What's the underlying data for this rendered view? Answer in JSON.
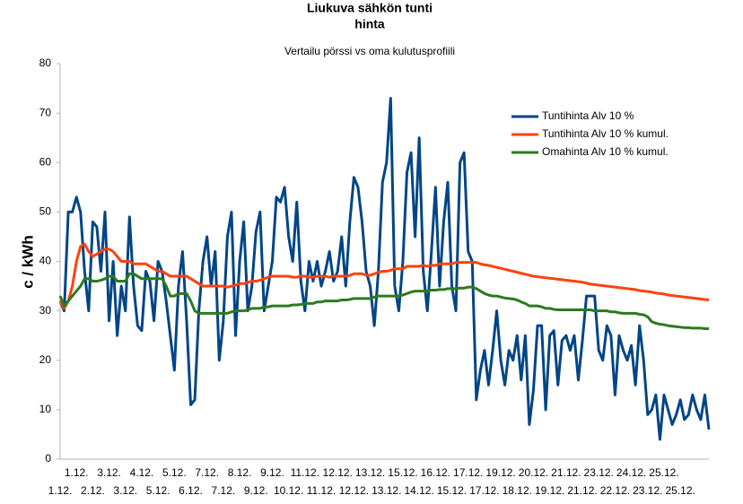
{
  "chart_data": {
    "type": "line",
    "title": [
      "Liukuva sähkön tunti",
      "hinta"
    ],
    "subtitle": "Vertailu pörssi vs oma kulutusprofiili",
    "y_label": "c / kWh",
    "ylim": [
      0,
      80
    ],
    "yticks": [
      0,
      10,
      20,
      30,
      40,
      50,
      60,
      70,
      80
    ],
    "grid": false,
    "legend": "upper right",
    "categories": [
      "1.12.",
      null,
      null,
      null,
      "1.12.",
      null,
      null,
      null,
      "2.12.",
      null,
      null,
      null,
      "3.12.",
      null,
      null,
      null,
      "3.12.",
      null,
      null,
      null,
      "4.12.",
      null,
      null,
      null,
      "5.12.",
      null,
      null,
      null,
      "5.12.",
      null,
      null,
      null,
      "6.12.",
      null,
      null,
      null,
      "7.12.",
      null,
      null,
      null,
      "7.12.",
      null,
      null,
      null,
      "8.12.",
      null,
      null,
      null,
      "9.12.",
      null,
      null,
      null,
      "9.12.",
      null,
      null,
      null,
      "10.12.",
      null,
      null,
      null,
      "11.12.",
      null,
      null,
      null,
      "11.12.",
      null,
      null,
      null,
      "12.12.",
      null,
      null,
      null,
      "12.12.",
      null,
      null,
      null,
      "13.12.",
      null,
      null,
      null,
      "13.12.",
      null,
      null,
      null,
      "15.12.",
      null,
      null,
      null,
      "14.12.",
      null,
      null,
      null,
      "16.12.",
      null,
      null,
      null,
      "15.12.",
      null,
      null,
      null,
      "17.12.",
      null,
      null,
      null,
      "17.12.",
      null,
      null,
      null,
      "19.12.",
      null,
      null,
      null,
      "18.12.",
      null,
      null,
      null,
      "20.12.",
      null,
      null,
      null,
      "19.12.",
      null,
      null,
      null,
      "21.12.",
      null,
      null,
      null,
      "21.12.",
      null,
      null,
      null,
      "23.12.",
      null,
      null,
      null,
      "22.12.",
      null,
      null,
      null,
      "24.12.",
      null,
      null,
      null,
      "23.12.",
      null,
      null,
      null,
      "25.12.",
      null,
      null,
      null,
      "25.12.",
      null,
      null,
      null,
      null,
      null,
      null,
      null
    ],
    "series": [
      {
        "name": "Tuntihinta Alv 10 %",
        "color": "#004586",
        "values": [
          32,
          30,
          50,
          50,
          53,
          50,
          38,
          30,
          48,
          47,
          38,
          50,
          28,
          40,
          25,
          35,
          30,
          49,
          35,
          27,
          26,
          38,
          36,
          28,
          40,
          38,
          32,
          25,
          18,
          35,
          42,
          28,
          11,
          12,
          30,
          40,
          45,
          35,
          42,
          20,
          28,
          45,
          50,
          25,
          40,
          48,
          30,
          35,
          46,
          50,
          30,
          35,
          40,
          53,
          52,
          55,
          45,
          40,
          52,
          36,
          30,
          40,
          36,
          40,
          35,
          38,
          42,
          36,
          38,
          45,
          35,
          48,
          57,
          55,
          48,
          38,
          35,
          27,
          38,
          56,
          60,
          73,
          35,
          30,
          40,
          58,
          62,
          45,
          65,
          38,
          30,
          42,
          55,
          35,
          48,
          56,
          35,
          30,
          60,
          62,
          42,
          40,
          12,
          18,
          22,
          15,
          22,
          30,
          20,
          15,
          22,
          20,
          25,
          16,
          25,
          7,
          14,
          27,
          27,
          10,
          25,
          26,
          15,
          24,
          25,
          22,
          25,
          16,
          24,
          33,
          33,
          33,
          22,
          20,
          27,
          25,
          13,
          25,
          22,
          20,
          23,
          15,
          27,
          20,
          9,
          10,
          13,
          4,
          13,
          10,
          7,
          9,
          12,
          8,
          9,
          13,
          10,
          8,
          13,
          6
        ]
      },
      {
        "name": "Tuntihinta Alv 10 % kumul.",
        "color": "#ff420e",
        "values": [
          32,
          30.5,
          32,
          35,
          40,
          43,
          43.5,
          42,
          41,
          41.5,
          42,
          42.5,
          42.5,
          42,
          41,
          40,
          40,
          40,
          39.5,
          39.5,
          39.5,
          39.5,
          39,
          38.5,
          38,
          38,
          37.5,
          37,
          37,
          37,
          37,
          37,
          36.5,
          36,
          35.5,
          35,
          35,
          35,
          35,
          35,
          35,
          34.8,
          35,
          35.2,
          35.5,
          35.5,
          35.8,
          36,
          36,
          36.2,
          36.5,
          36.8,
          37,
          37,
          37,
          37,
          37,
          36.8,
          36.8,
          37,
          37,
          36.8,
          36.8,
          37,
          37,
          37,
          36.8,
          37,
          37,
          37,
          37,
          37.2,
          37.5,
          37.5,
          37.5,
          37.2,
          37.2,
          37.5,
          37.8,
          38,
          38,
          38.2,
          38.5,
          38.5,
          38.5,
          39,
          39,
          39,
          39,
          39.2,
          39,
          39.2,
          39.2,
          39.5,
          39.5,
          39.5,
          39.5,
          39.8,
          39.8,
          39.8,
          39.8,
          39.8,
          39.8,
          39.5,
          39.3,
          39.2,
          39,
          38.8,
          38.6,
          38.4,
          38.2,
          38,
          37.8,
          37.6,
          37.4,
          37.2,
          37,
          36.9,
          36.8,
          36.7,
          36.6,
          36.5,
          36.4,
          36.3,
          36.2,
          36.1,
          36,
          35.9,
          35.8,
          35.6,
          35.4,
          35.3,
          35.2,
          35.1,
          35,
          34.9,
          34.8,
          34.7,
          34.6,
          34.5,
          34.4,
          34.3,
          34.1,
          34,
          33.9,
          33.8,
          33.6,
          33.5,
          33.4,
          33.2,
          33.1,
          33,
          32.9,
          32.8,
          32.7,
          32.6,
          32.5,
          32.4,
          32.3,
          32.2
        ]
      },
      {
        "name": "Omahinta Alv 10 % kumul.",
        "color": "#2c7a1e",
        "values": [
          33,
          31,
          32,
          33,
          34,
          35,
          36.5,
          36.5,
          36,
          36,
          36.2,
          36.5,
          37,
          37,
          36,
          36,
          36,
          37.5,
          37.5,
          37,
          36.5,
          36.5,
          36.5,
          36.5,
          36.5,
          36.5,
          35,
          33,
          33,
          33.5,
          33.5,
          33.5,
          32,
          30,
          29.5,
          29.5,
          29.5,
          29.5,
          29.5,
          29.5,
          29.5,
          29.5,
          29.8,
          30,
          30,
          30,
          30.2,
          30.5,
          30.5,
          30.5,
          30.8,
          30.8,
          31,
          31,
          31,
          31,
          31,
          31.2,
          31.2,
          31.3,
          31.5,
          31.5,
          31.5,
          31.8,
          31.8,
          32,
          32,
          32,
          32,
          32.2,
          32.2,
          32.3,
          32.5,
          32.5,
          32.5,
          32.5,
          32.5,
          32.8,
          33,
          33,
          33,
          33,
          33,
          33,
          33.2,
          33.5,
          33.8,
          34,
          34,
          34,
          34,
          34.2,
          34.2,
          34.3,
          34.3,
          34.5,
          34.5,
          34.5,
          34.6,
          34.6,
          34.8,
          34.8,
          34.5,
          34,
          33.5,
          33.2,
          33,
          33,
          32.8,
          32.6,
          32.5,
          32.4,
          32.2,
          31.8,
          31.5,
          31,
          31,
          31,
          30.8,
          30.5,
          30.5,
          30.3,
          30.2,
          30.2,
          30.2,
          30.2,
          30.2,
          30.2,
          30.2,
          30.2,
          30.2,
          30,
          30,
          30,
          30,
          29.8,
          29.8,
          29.6,
          29.5,
          29.5,
          29.5,
          29.5,
          29.3,
          29.2,
          28.8,
          27.8,
          27.5,
          27.3,
          27.2,
          27,
          26.9,
          26.8,
          26.7,
          26.6,
          26.6,
          26.5,
          26.5,
          26.5,
          26.4,
          26.4
        ]
      }
    ]
  }
}
